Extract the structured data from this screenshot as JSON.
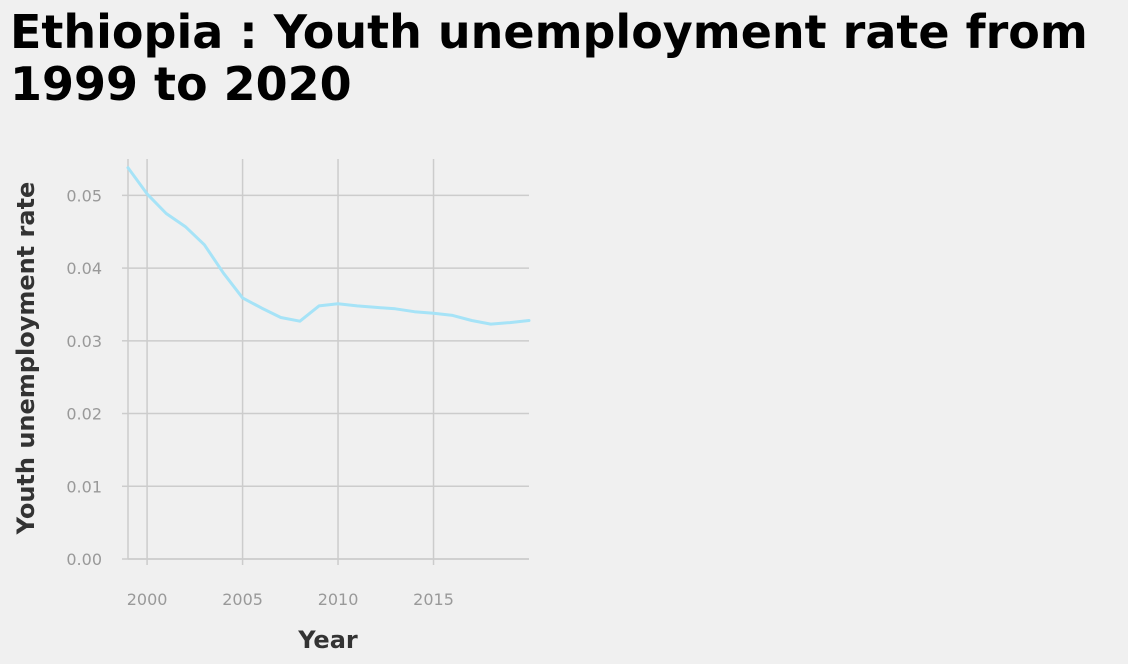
{
  "chart_data": {
    "type": "line",
    "title": "Ethiopia : Youth unemployment rate from 1999 to 2020",
    "xlabel": "Year",
    "ylabel": "Youth unemployment rate",
    "xlim": [
      1999,
      2020
    ],
    "ylim": [
      0,
      0.055
    ],
    "x_ticks": [
      2000,
      2005,
      2010,
      2015
    ],
    "x_tick_labels": [
      "2000",
      "2005",
      "2010",
      "2015"
    ],
    "y_ticks": [
      0,
      0.01,
      0.02,
      0.03,
      0.04,
      0.05
    ],
    "y_tick_labels": [
      "0.00",
      "0.01",
      "0.02",
      "0.03",
      "0.04",
      "0.05"
    ],
    "grid": true,
    "series": [
      {
        "color": "#a6e3f7",
        "x": [
          1999,
          2000,
          2001,
          2002,
          2003,
          2004,
          2005,
          2006,
          2007,
          2008,
          2009,
          2010,
          2011,
          2012,
          2013,
          2014,
          2015,
          2016,
          2017,
          2018,
          2019,
          2020
        ],
        "values": [
          0.0538,
          0.0502,
          0.0475,
          0.0457,
          0.0432,
          0.0393,
          0.0359,
          0.0345,
          0.0332,
          0.0327,
          0.0348,
          0.0351,
          0.0348,
          0.0346,
          0.0344,
          0.034,
          0.0338,
          0.0335,
          0.0328,
          0.0323,
          0.0325,
          0.0328
        ]
      }
    ]
  }
}
